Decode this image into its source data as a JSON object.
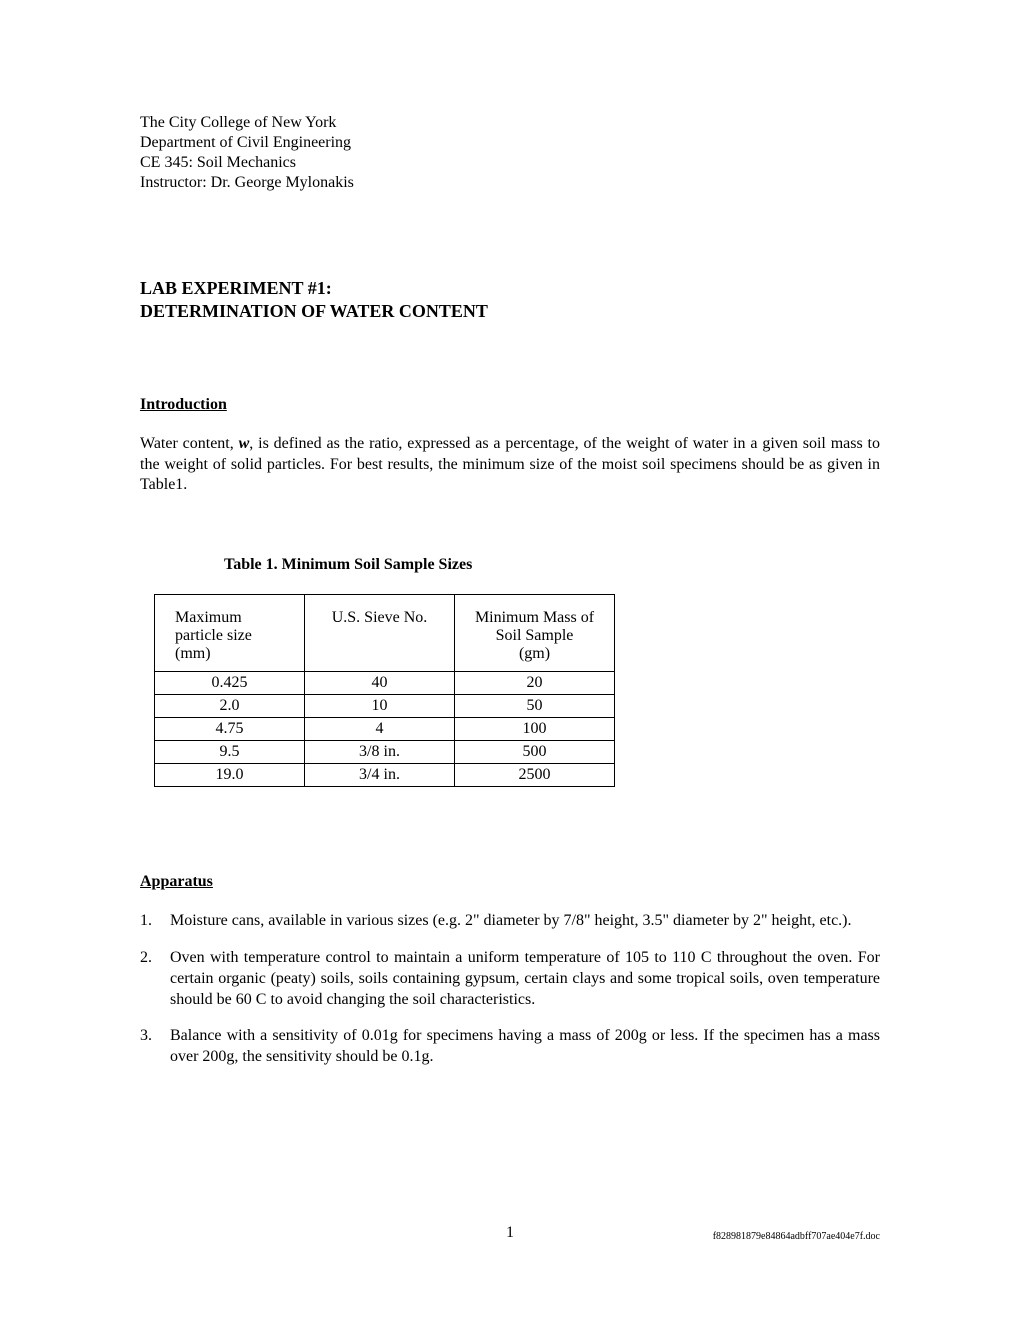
{
  "header": {
    "line1": "The City College of New York",
    "line2": "Department of Civil Engineering",
    "line3": "CE 345: Soil Mechanics",
    "line4": "Instructor: Dr. George Mylonakis"
  },
  "title": {
    "line1": "LAB EXPERIMENT #1:",
    "line2": "DETERMINATION OF WATER CONTENT"
  },
  "intro": {
    "heading": "Introduction",
    "text_pre": "Water content, ",
    "text_var": "w",
    "text_post": ", is defined as the ratio, expressed as a percentage, of the weight of water in a given soil mass to the weight of solid particles.  For best results, the minimum size of the moist soil specimens should be as given in Table1."
  },
  "table": {
    "caption": "Table 1.  Minimum Soil Sample Sizes",
    "headers": {
      "col1_line1": "Maximum",
      "col1_line2": "particle size",
      "col1_line3": "(mm)",
      "col2": "U.S. Sieve No.",
      "col3_line1": "Minimum Mass of",
      "col3_line2": "Soil Sample",
      "col3_line3": "(gm)"
    },
    "rows": [
      {
        "c1": "0.425",
        "c2": "40",
        "c3": "20"
      },
      {
        "c1": "2.0",
        "c2": "10",
        "c3": "50"
      },
      {
        "c1": "4.75",
        "c2": "4",
        "c3": "100"
      },
      {
        "c1": "9.5",
        "c2": "3/8 in.",
        "c3": "500"
      },
      {
        "c1": "19.0",
        "c2": "3/4 in.",
        "c3": "2500"
      }
    ]
  },
  "apparatus": {
    "heading": "Apparatus",
    "items": [
      {
        "num": "1.",
        "text": "Moisture cans, available in various sizes (e.g. 2\" diameter by 7/8\" height, 3.5\" diameter by 2\" height, etc.)."
      },
      {
        "num": "2.",
        "text": "Oven with temperature control to maintain a uniform temperature of 105 to 110 C throughout the oven. For certain organic (peaty) soils, soils containing gypsum, certain clays and some tropical soils, oven temperature should be 60 C to avoid changing the soil characteristics."
      },
      {
        "num": "3.",
        "text": "Balance with a sensitivity of 0.01g for specimens having a mass of 200g or less. If the specimen has a mass over 200g, the sensitivity should be 0.1g."
      }
    ]
  },
  "footer": {
    "page_number": "1",
    "filename": "f828981879e84864adbff707ae404e7f.doc"
  }
}
